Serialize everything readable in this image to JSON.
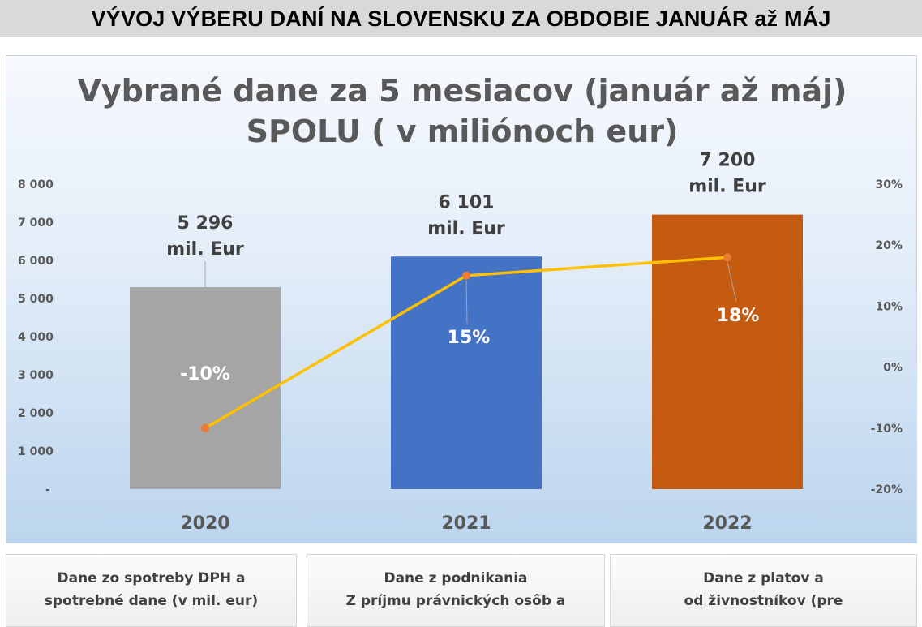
{
  "banner": {
    "title": "VÝVOJ VÝBERU DANÍ NA SLOVENSKU ZA OBDOBIE JANUÁR až MÁJ"
  },
  "chart_data": {
    "type": "bar+line",
    "title": [
      "Vybrané dane za 5 mesiacov (január až máj)",
      "SPOLU ( v miliónoch eur)"
    ],
    "categories": [
      "2020",
      "2021",
      "2022"
    ],
    "series": [
      {
        "type": "bar",
        "values": [
          5296,
          6101,
          7200
        ],
        "labels": [
          "5 296",
          "6 101",
          "7 200"
        ],
        "unit_label": "mil. Eur",
        "colors": [
          "#a5a5a5",
          "#4472c4",
          "#c55a11"
        ],
        "axis": "left"
      },
      {
        "type": "line",
        "values": [
          -10,
          15,
          18
        ],
        "labels": [
          "-10%",
          "15%",
          "18%"
        ],
        "color": "#ffc000",
        "marker_color": "#ed7d31",
        "axis": "right"
      }
    ],
    "left_axis": {
      "ylim": [
        0,
        8000
      ],
      "ticks": [
        "-",
        "1 000",
        "2 000",
        "3 000",
        "4 000",
        "5 000",
        "6 000",
        "7 000",
        "8 000"
      ]
    },
    "right_axis": {
      "ylim": [
        -20,
        30
      ],
      "ticks": [
        "-20%",
        "-10%",
        "0%",
        "10%",
        "20%",
        "30%"
      ]
    },
    "grid": false,
    "legend": "none"
  },
  "cards": [
    {
      "lines": [
        "Dane zo spotreby DPH a",
        "spotrebné dane (v mil. eur)"
      ]
    },
    {
      "lines": [
        "Dane z podnikania",
        "Z príjmu právnických osôb a"
      ]
    },
    {
      "lines": [
        "Dane z platov a",
        "od živnostníkov (pre"
      ]
    }
  ]
}
